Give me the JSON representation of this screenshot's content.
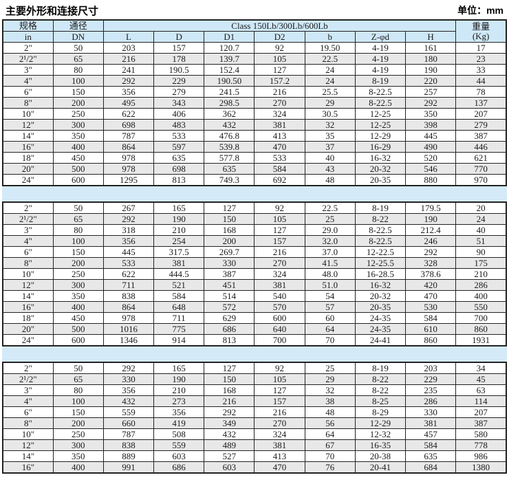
{
  "page": {
    "title": "主要外形和连接尺寸",
    "unit_label": "单位：mm"
  },
  "colors": {
    "header_blue": "#cfe8f7",
    "divider_blue": "#d4eaf8",
    "stripe_gray": "#e8e8e8",
    "border": "#222222"
  },
  "table": {
    "header": {
      "spec_label": "规格",
      "spec_unit": "in",
      "dn_label": "通径",
      "dn_unit": "DN",
      "class_label": "Class 150Lb/300Lb/600Lb",
      "dim_columns": [
        "L",
        "D",
        "D1",
        "D2",
        "b",
        "Z-φd",
        "H"
      ],
      "weight_label": "重量",
      "weight_unit": "(Kg)"
    },
    "sections": [
      {
        "rows": [
          [
            "2\"",
            "50",
            "203",
            "157",
            "120.7",
            "92",
            "19.50",
            "4-19",
            "161",
            "17"
          ],
          [
            "2¹/2\"",
            "65",
            "216",
            "178",
            "139.7",
            "105",
            "22.5",
            "4-19",
            "180",
            "23"
          ],
          [
            "3\"",
            "80",
            "241",
            "190.5",
            "152.4",
            "127",
            "24",
            "4-19",
            "190",
            "33"
          ],
          [
            "4\"",
            "100",
            "292",
            "229",
            "190.50",
            "157.2",
            "24",
            "8-19",
            "220",
            "44"
          ],
          [
            "6\"",
            "150",
            "356",
            "279",
            "241.5",
            "216",
            "25.5",
            "8-22.5",
            "257",
            "78"
          ],
          [
            "8\"",
            "200",
            "495",
            "343",
            "298.5",
            "270",
            "29",
            "8-22.5",
            "292",
            "137"
          ],
          [
            "10\"",
            "250",
            "622",
            "406",
            "362",
            "324",
            "30.5",
            "12-25",
            "350",
            "207"
          ],
          [
            "12\"",
            "300",
            "698",
            "483",
            "432",
            "381",
            "32",
            "12-25",
            "398",
            "279"
          ],
          [
            "14\"",
            "350",
            "787",
            "533",
            "476.8",
            "413",
            "35",
            "12-29",
            "445",
            "387"
          ],
          [
            "16\"",
            "400",
            "864",
            "597",
            "539.8",
            "470",
            "37",
            "16-29",
            "490",
            "446"
          ],
          [
            "18\"",
            "450",
            "978",
            "635",
            "577.8",
            "533",
            "40",
            "16-32",
            "520",
            "621"
          ],
          [
            "20\"",
            "500",
            "978",
            "698",
            "635",
            "584",
            "43",
            "20-32",
            "546",
            "770"
          ],
          [
            "24\"",
            "600",
            "1295",
            "813",
            "749.3",
            "692",
            "48",
            "20-35",
            "880",
            "970"
          ]
        ]
      },
      {
        "rows": [
          [
            "2\"",
            "50",
            "267",
            "165",
            "127",
            "92",
            "22.5",
            "8-19",
            "179.5",
            "20"
          ],
          [
            "2¹/2\"",
            "65",
            "292",
            "190",
            "150",
            "105",
            "25",
            "8-22",
            "190",
            "24"
          ],
          [
            "3\"",
            "80",
            "318",
            "210",
            "168",
            "127",
            "29.0",
            "8-22.5",
            "212.4",
            "40"
          ],
          [
            "4\"",
            "100",
            "356",
            "254",
            "200",
            "157",
            "32.0",
            "8-22.5",
            "246",
            "51"
          ],
          [
            "6\"",
            "150",
            "445",
            "317.5",
            "269.7",
            "216",
            "37.0",
            "12-22.5",
            "292",
            "90"
          ],
          [
            "8\"",
            "200",
            "533",
            "381",
            "330",
            "270",
            "41.5",
            "12-25.5",
            "328",
            "175"
          ],
          [
            "10\"",
            "250",
            "622",
            "444.5",
            "387",
            "324",
            "48.0",
            "16-28.5",
            "378.6",
            "210"
          ],
          [
            "12\"",
            "300",
            "711",
            "521",
            "451",
            "381",
            "51.0",
            "16-32",
            "420",
            "286"
          ],
          [
            "14\"",
            "350",
            "838",
            "584",
            "514",
            "540",
            "54",
            "20-32",
            "470",
            "400"
          ],
          [
            "16\"",
            "400",
            "864",
            "648",
            "572",
            "570",
            "57",
            "20-35",
            "530",
            "550"
          ],
          [
            "18\"",
            "450",
            "978",
            "711",
            "629",
            "600",
            "60",
            "24-35",
            "584",
            "700"
          ],
          [
            "20\"",
            "500",
            "1016",
            "775",
            "686",
            "640",
            "64",
            "24-35",
            "610",
            "860"
          ],
          [
            "24\"",
            "600",
            "1346",
            "914",
            "813",
            "700",
            "70",
            "24-41",
            "860",
            "1931"
          ]
        ]
      },
      {
        "rows": [
          [
            "2\"",
            "50",
            "292",
            "165",
            "127",
            "92",
            "25",
            "8-19",
            "203",
            "34"
          ],
          [
            "2¹/2\"",
            "65",
            "330",
            "190",
            "150",
            "105",
            "29",
            "8-22",
            "229",
            "45"
          ],
          [
            "3\"",
            "80",
            "356",
            "210",
            "168",
            "127",
            "32",
            "8-22",
            "235",
            "63"
          ],
          [
            "4\"",
            "100",
            "432",
            "273",
            "216",
            "157",
            "38",
            "8-25",
            "286",
            "114"
          ],
          [
            "6\"",
            "150",
            "559",
            "356",
            "292",
            "216",
            "48",
            "8-29",
            "330",
            "207"
          ],
          [
            "8\"",
            "200",
            "660",
            "419",
            "349",
            "270",
            "56",
            "12-29",
            "381",
            "387"
          ],
          [
            "10\"",
            "250",
            "787",
            "508",
            "432",
            "324",
            "64",
            "12-32",
            "457",
            "580"
          ],
          [
            "12\"",
            "300",
            "838",
            "559",
            "489",
            "381",
            "67",
            "16-35",
            "584",
            "778"
          ],
          [
            "14\"",
            "350",
            "889",
            "603",
            "527",
            "413",
            "70",
            "20-38",
            "635",
            "986"
          ],
          [
            "16\"",
            "400",
            "991",
            "686",
            "603",
            "470",
            "76",
            "20-41",
            "684",
            "1380"
          ]
        ]
      }
    ]
  }
}
